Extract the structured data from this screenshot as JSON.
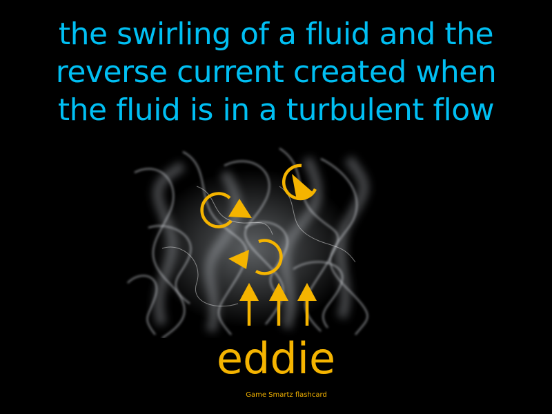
{
  "flashcard": {
    "definition_lines": [
      "the swirling of a fluid and the",
      "reverse current created when",
      "the fluid is in a turbulent flow"
    ],
    "term": "eddie",
    "credit": "Game Smartz flashcard"
  },
  "colors": {
    "background": "#000000",
    "definition_text": "#00bff3",
    "accent": "#f5b400",
    "smoke": "#d9dde3"
  },
  "illustration": {
    "subject": "smoke-with-eddy-current-arrows",
    "icons": [
      "swirl-arrow-icon",
      "up-arrow-icon"
    ]
  }
}
